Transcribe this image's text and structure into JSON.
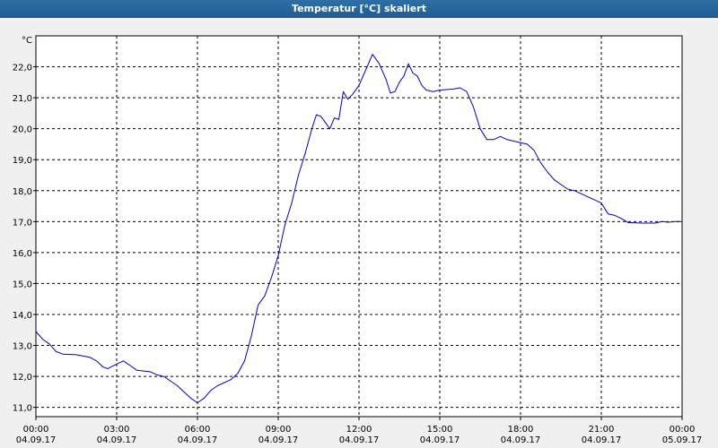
{
  "window": {
    "title": "Temperatur [°C] skaliert"
  },
  "colors": {
    "line": "#0000cc",
    "titlebar": "#1e5c92",
    "plot_bg": "#ffffff",
    "page_bg": "#f0f0f0",
    "grid": "#000000"
  },
  "chart_data": {
    "type": "line",
    "title": "Temperatur [°C] skaliert",
    "ylabel": "°C",
    "xlabel": "",
    "grid": true,
    "grid_style": "dashed",
    "xlim": [
      "04.09.17 00:00",
      "05.09.17 00:00"
    ],
    "ylim": [
      10.7,
      23.0
    ],
    "y_ticks": [
      "11,0",
      "12,0",
      "13,0",
      "14,0",
      "15,0",
      "16,0",
      "17,0",
      "18,0",
      "19,0",
      "20,0",
      "21,0",
      "22,0"
    ],
    "x_ticks": [
      {
        "time": "00:00",
        "date": "04.09.17"
      },
      {
        "time": "03:00",
        "date": "04.09.17"
      },
      {
        "time": "06:00",
        "date": "04.09.17"
      },
      {
        "time": "09:00",
        "date": "04.09.17"
      },
      {
        "time": "12:00",
        "date": "04.09.17"
      },
      {
        "time": "15:00",
        "date": "04.09.17"
      },
      {
        "time": "18:00",
        "date": "04.09.17"
      },
      {
        "time": "21:00",
        "date": "04.09.17"
      },
      {
        "time": "00:00",
        "date": "05.09.17"
      }
    ],
    "series": [
      {
        "values": [
          [
            "04.09.17 00:00",
            13.45
          ],
          [
            "04.09.17 00:15",
            13.2
          ],
          [
            "04.09.17 00:30",
            13.05
          ],
          [
            "04.09.17 00:45",
            12.8
          ],
          [
            "04.09.17 01:00",
            12.72
          ],
          [
            "04.09.17 01:30",
            12.7
          ],
          [
            "04.09.17 02:00",
            12.62
          ],
          [
            "04.09.17 02:15",
            12.5
          ],
          [
            "04.09.17 02:30",
            12.3
          ],
          [
            "04.09.17 02:40",
            12.25
          ],
          [
            "04.09.17 03:00",
            12.4
          ],
          [
            "04.09.17 03:15",
            12.5
          ],
          [
            "04.09.17 03:30",
            12.35
          ],
          [
            "04.09.17 03:45",
            12.2
          ],
          [
            "04.09.17 04:15",
            12.15
          ],
          [
            "04.09.17 04:30",
            12.05
          ],
          [
            "04.09.17 04:45",
            12.0
          ],
          [
            "04.09.17 05:15",
            11.7
          ],
          [
            "04.09.17 05:30",
            11.5
          ],
          [
            "04.09.17 05:45",
            11.3
          ],
          [
            "04.09.17 06:00",
            11.15
          ],
          [
            "04.09.17 06:15",
            11.3
          ],
          [
            "04.09.17 06:30",
            11.55
          ],
          [
            "04.09.17 06:45",
            11.7
          ],
          [
            "04.09.17 07:00",
            11.8
          ],
          [
            "04.09.17 07:15",
            11.9
          ],
          [
            "04.09.17 07:30",
            12.1
          ],
          [
            "04.09.17 07:45",
            12.5
          ],
          [
            "04.09.17 08:00",
            13.3
          ],
          [
            "04.09.17 08:15",
            14.3
          ],
          [
            "04.09.17 08:30",
            14.6
          ],
          [
            "04.09.17 08:45",
            15.2
          ],
          [
            "04.09.17 09:00",
            15.9
          ],
          [
            "04.09.17 09:15",
            16.9
          ],
          [
            "04.09.17 09:30",
            17.6
          ],
          [
            "04.09.17 09:45",
            18.5
          ],
          [
            "04.09.17 10:00",
            19.2
          ],
          [
            "04.09.17 10:15",
            20.0
          ],
          [
            "04.09.17 10:25",
            20.45
          ],
          [
            "04.09.17 10:35",
            20.4
          ],
          [
            "04.09.17 10:45",
            20.2
          ],
          [
            "04.09.17 10:55",
            20.0
          ],
          [
            "04.09.17 11:05",
            20.35
          ],
          [
            "04.09.17 11:15",
            20.3
          ],
          [
            "04.09.17 11:25",
            21.2
          ],
          [
            "04.09.17 11:35",
            20.95
          ],
          [
            "04.09.17 11:45",
            21.1
          ],
          [
            "04.09.17 12:00",
            21.4
          ],
          [
            "04.09.17 12:15",
            21.9
          ],
          [
            "04.09.17 12:30",
            22.4
          ],
          [
            "04.09.17 12:45",
            22.1
          ],
          [
            "04.09.17 13:00",
            21.6
          ],
          [
            "04.09.17 13:10",
            21.15
          ],
          [
            "04.09.17 13:20",
            21.2
          ],
          [
            "04.09.17 13:30",
            21.5
          ],
          [
            "04.09.17 13:40",
            21.7
          ],
          [
            "04.09.17 13:50",
            22.1
          ],
          [
            "04.09.17 14:00",
            21.8
          ],
          [
            "04.09.17 14:10",
            21.7
          ],
          [
            "04.09.17 14:20",
            21.4
          ],
          [
            "04.09.17 14:30",
            21.25
          ],
          [
            "04.09.17 14:45",
            21.2
          ],
          [
            "04.09.17 15:00",
            21.25
          ],
          [
            "04.09.17 15:30",
            21.28
          ],
          [
            "04.09.17 15:45",
            21.32
          ],
          [
            "04.09.17 16:00",
            21.2
          ],
          [
            "04.09.17 16:15",
            20.7
          ],
          [
            "04.09.17 16:30",
            20.0
          ],
          [
            "04.09.17 16:45",
            19.65
          ],
          [
            "04.09.17 17:00",
            19.65
          ],
          [
            "04.09.17 17:15",
            19.75
          ],
          [
            "04.09.17 17:30",
            19.65
          ],
          [
            "04.09.17 18:00",
            19.55
          ],
          [
            "04.09.17 18:15",
            19.5
          ],
          [
            "04.09.17 18:30",
            19.3
          ],
          [
            "04.09.17 18:45",
            18.9
          ],
          [
            "04.09.17 19:00",
            18.6
          ],
          [
            "04.09.17 19:15",
            18.35
          ],
          [
            "04.09.17 19:30",
            18.2
          ],
          [
            "04.09.17 19:45",
            18.05
          ],
          [
            "04.09.17 20:00",
            18.0
          ],
          [
            "04.09.17 20:15",
            17.9
          ],
          [
            "04.09.17 20:30",
            17.8
          ],
          [
            "04.09.17 20:45",
            17.7
          ],
          [
            "04.09.17 21:00",
            17.6
          ],
          [
            "04.09.17 21:15",
            17.25
          ],
          [
            "04.09.17 21:30",
            17.2
          ],
          [
            "04.09.17 21:45",
            17.1
          ],
          [
            "04.09.17 22:00",
            16.97
          ],
          [
            "04.09.17 22:30",
            16.95
          ],
          [
            "04.09.17 23:00",
            16.95
          ],
          [
            "04.09.17 23:15",
            17.0
          ],
          [
            "04.09.17 23:30",
            16.98
          ],
          [
            "04.09.17 23:45",
            17.0
          ],
          [
            "05.09.17 00:00",
            17.0
          ]
        ]
      }
    ]
  }
}
